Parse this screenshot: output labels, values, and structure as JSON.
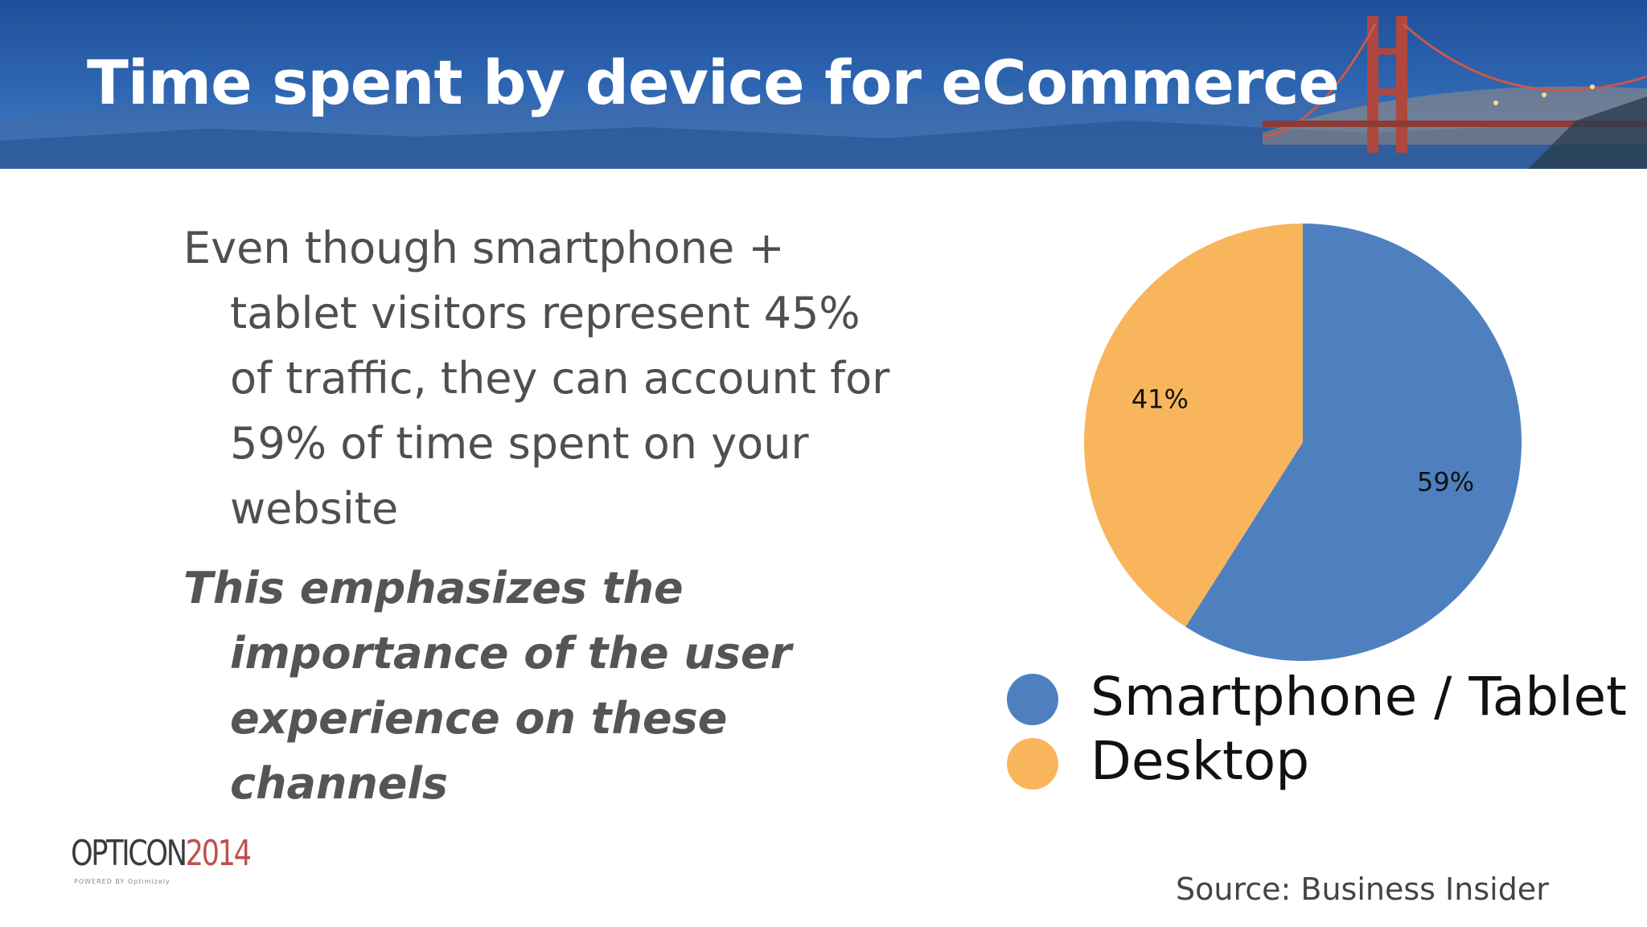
{
  "slide": {
    "title": "Time spent by device for eCommerce",
    "bullets": [
      "Even though smartphone + tablet visitors represent 45% of traffic, they can account for 59% of time spent on your website",
      "This emphasizes the importance of the user experience on these channels"
    ],
    "source": "Source: Business Insider",
    "logo": {
      "word": "OPTICON",
      "year": "2014",
      "tagline": "POWERED BY Optimizely"
    }
  },
  "colors": {
    "header_blue": "#2f67b3",
    "smartphone_tablet": "#4e80bf",
    "desktop": "#f9b55c",
    "logo_year": "#c0504d"
  },
  "chart_data": {
    "type": "pie",
    "categories": [
      "Smartphone / Tablet",
      "Desktop"
    ],
    "values": [
      59,
      41
    ],
    "data_labels": [
      "59%",
      "41%"
    ],
    "legend_position": "bottom",
    "start_angle_deg": 0,
    "direction": "clockwise"
  }
}
